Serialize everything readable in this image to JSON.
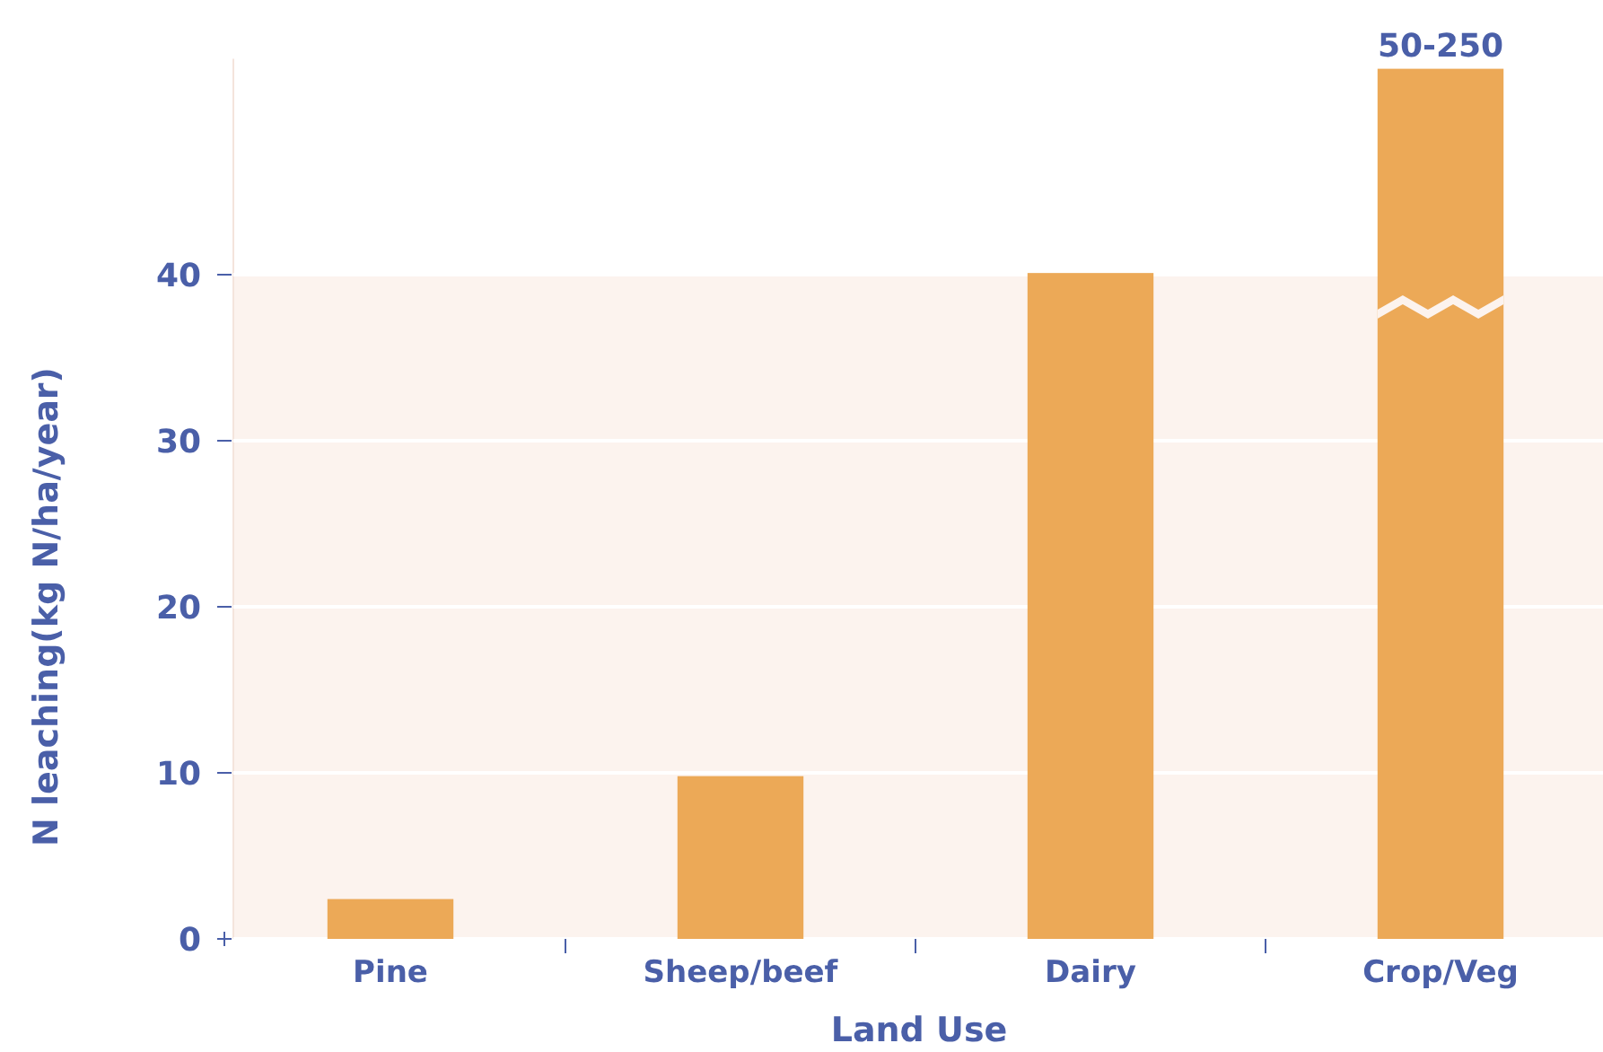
{
  "chart_data": {
    "type": "bar",
    "xlabel": "Land Use",
    "ylabel": "N leaching(kg N/ha/year)",
    "categories": [
      "Pine",
      "Sheep/beef",
      "Dairy",
      "Crop/Veg"
    ],
    "values": [
      2.4,
      9.8,
      40.1,
      52.4
    ],
    "value_labels": [
      null,
      null,
      null,
      "50-250"
    ],
    "color": "#eca957",
    "ylim": [
      0,
      53
    ],
    "yticks": [
      0,
      10,
      20,
      30,
      40
    ],
    "grid": "y",
    "bands": [
      {
        "axis": "y",
        "from": 0,
        "to": 40,
        "color": "#fcf3ee"
      }
    ]
  }
}
